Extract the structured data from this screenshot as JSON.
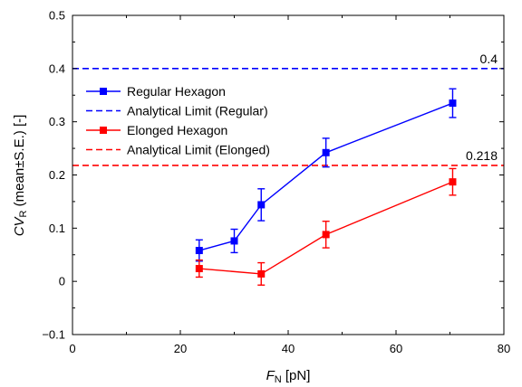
{
  "chart_data": {
    "type": "line",
    "xlabel": {
      "main": "F",
      "sub": "N",
      "rest": " [pN]"
    },
    "ylabel": {
      "main": "CV",
      "sub": "R",
      "rest": " (mean±S.E.) [-]"
    },
    "xlim": [
      0,
      80
    ],
    "ylim": [
      -0.1,
      0.5
    ],
    "x_ticks": [
      "0",
      "20",
      "40",
      "60",
      "80"
    ],
    "y_ticks": [
      "−0.1",
      "0",
      "0.1",
      "0.2",
      "0.3",
      "0.4",
      "0.5"
    ],
    "x_tick_values": [
      0,
      20,
      40,
      60,
      80
    ],
    "y_tick_values": [
      -0.1,
      0,
      0.1,
      0.2,
      0.3,
      0.4,
      0.5
    ],
    "grid": false,
    "legend_placement": "top-left",
    "series": [
      {
        "name": "Regular Hexagon",
        "color": "#0000ff",
        "marker": "square",
        "x": [
          23.5,
          30,
          35,
          47,
          70.5
        ],
        "y": [
          0.058,
          0.076,
          0.144,
          0.242,
          0.335
        ],
        "err": [
          0.02,
          0.022,
          0.03,
          0.027,
          0.027
        ]
      },
      {
        "name": "Elonged Hexagon",
        "color": "#ff0000",
        "marker": "square",
        "x": [
          23.5,
          35,
          47,
          70.5
        ],
        "y": [
          0.024,
          0.014,
          0.088,
          0.187
        ],
        "err": [
          0.016,
          0.021,
          0.025,
          0.025
        ]
      }
    ],
    "reference_lines": [
      {
        "name": "Analytical Limit (Regular)",
        "y": 0.4,
        "color": "#0000ff",
        "style": "dashed",
        "label": "0.4"
      },
      {
        "name": "Analytical Limit (Elonged)",
        "y": 0.218,
        "color": "#ff0000",
        "style": "dashed",
        "label": "0.218"
      }
    ]
  }
}
